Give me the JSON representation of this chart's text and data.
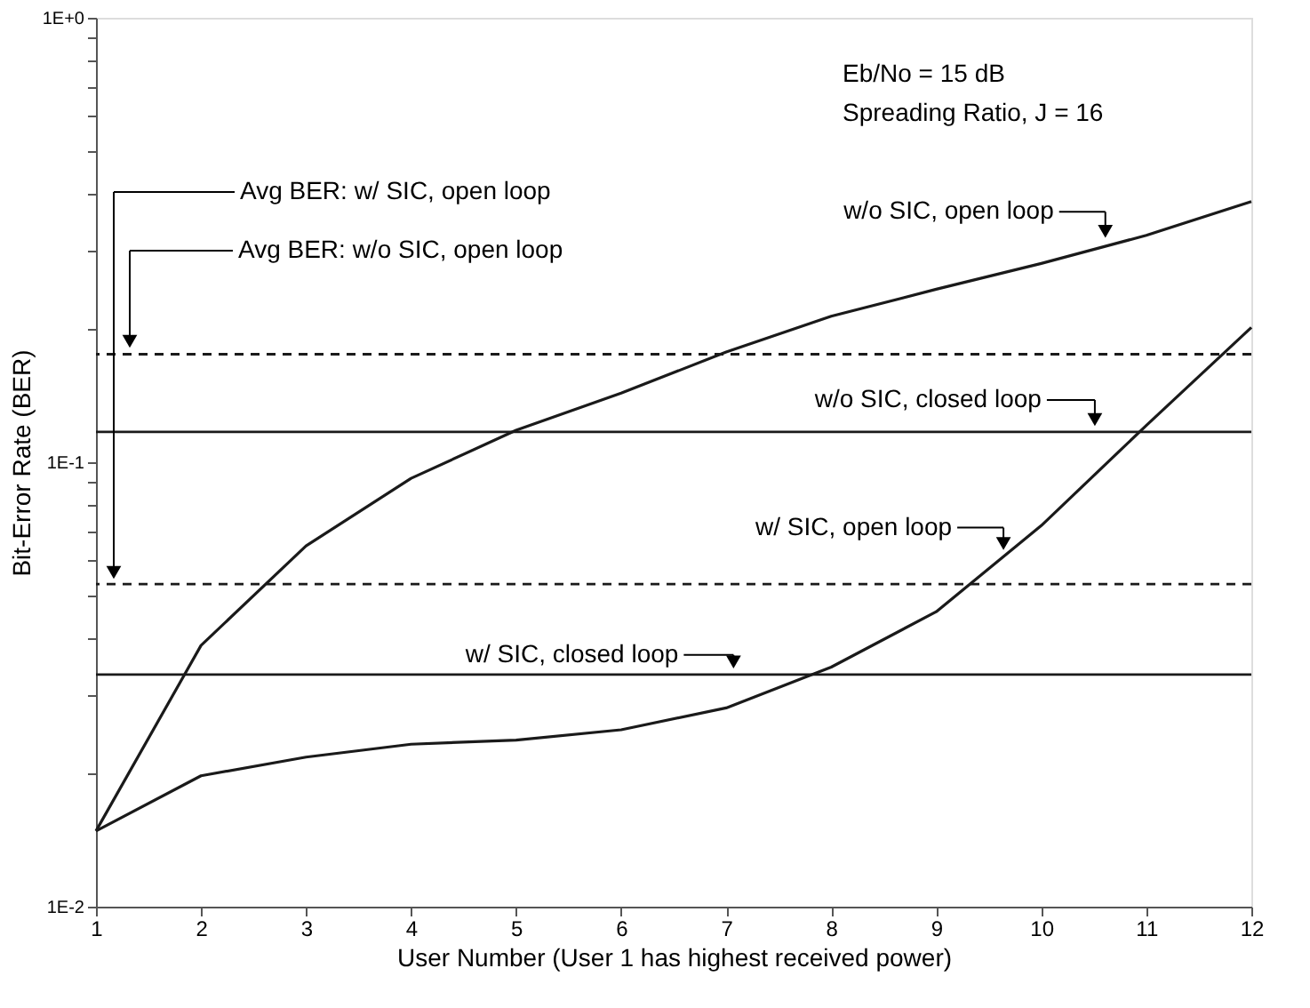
{
  "chart_data": {
    "type": "line",
    "xlabel": "User Number (User 1 has highest received power)",
    "ylabel": "Bit-Error Rate (BER)",
    "x": [
      1,
      2,
      3,
      4,
      5,
      6,
      7,
      8,
      9,
      10,
      11,
      12
    ],
    "series": [
      {
        "color": "#1a1a1a",
        "values": [
          0.0148,
          0.0387,
          0.0648,
          0.092,
          0.118,
          0.143,
          0.177,
          0.213,
          0.245,
          0.28,
          0.324,
          0.386
        ]
      },
      {
        "color": "#1a1a1a",
        "values": [
          0.0148,
          0.0197,
          0.0217,
          0.0232,
          0.0237,
          0.025,
          0.028,
          0.0346,
          0.0461,
          0.072,
          0.121,
          0.201
        ]
      }
    ],
    "ref_lines": [
      {
        "axis": "y",
        "value": 0.175,
        "line_style": "dashed",
        "color": "#1a1a1a"
      },
      {
        "axis": "y",
        "value": 0.117,
        "line_style": "solid",
        "color": "#1a1a1a"
      },
      {
        "axis": "y",
        "value": 0.0532,
        "line_style": "dashed",
        "color": "#1a1a1a"
      },
      {
        "axis": "y",
        "value": 0.0333,
        "line_style": "solid",
        "color": "#1a1a1a"
      }
    ],
    "annotations": [
      {
        "text": "w/o SIC, open loop",
        "x": 10.61,
        "y": 0.31
      },
      {
        "text": "w/o SIC, closed loop",
        "x": 10.51,
        "y": 0.117
      },
      {
        "text": "w/ SIC, open loop",
        "x": 9.64,
        "y": 0.0615
      },
      {
        "text": "w/ SIC, closed loop",
        "x": 7.07,
        "y": 0.0333
      },
      "Avg BER: w/  SIC, open loop",
      "Avg BER: w/o SIC, open loop",
      "Eb/No = 15 dB",
      "Spreading Ratio, J = 16"
    ],
    "xlim": [
      1,
      12
    ],
    "ylim": [
      0.01,
      1
    ],
    "log": true,
    "xticks": [
      1,
      2,
      3,
      4,
      5,
      6,
      7,
      8,
      9,
      10,
      11,
      12
    ],
    "yticks": [
      {
        "value": 0.01,
        "label": "1E-2"
      },
      {
        "value": 0.02,
        "label": null
      },
      {
        "value": 0.03,
        "label": null
      },
      {
        "value": 0.04,
        "label": null
      },
      {
        "value": 0.05,
        "label": null
      },
      {
        "value": 0.06,
        "label": null
      },
      {
        "value": 0.07,
        "label": null
      },
      {
        "value": 0.08,
        "label": null
      },
      {
        "value": 0.09,
        "label": null
      },
      {
        "value": 0.1,
        "label": "1E-1"
      },
      {
        "value": 0.2,
        "label": null
      },
      {
        "value": 0.3,
        "label": null
      },
      {
        "value": 0.4,
        "label": null
      },
      {
        "value": 0.5,
        "label": null
      },
      {
        "value": 0.6,
        "label": null
      },
      {
        "value": 0.7,
        "label": null
      },
      {
        "value": 0.8,
        "label": null
      },
      {
        "value": 0.9,
        "label": null
      },
      {
        "value": 1,
        "label": "1E+0"
      }
    ],
    "marker": "none",
    "line_style": "solid"
  }
}
